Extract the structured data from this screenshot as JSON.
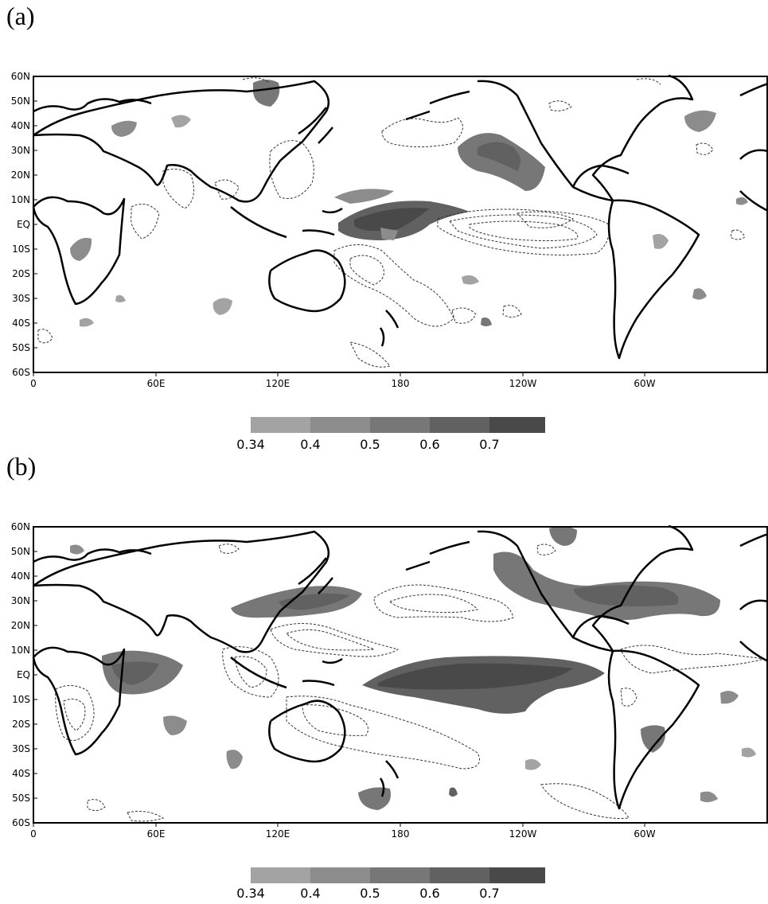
{
  "panels": [
    {
      "id": "a",
      "label": "(a)"
    },
    {
      "id": "b",
      "label": "(b)"
    }
  ],
  "axes": {
    "y_ticks": [
      "60N",
      "50N",
      "40N",
      "30N",
      "20N",
      "10N",
      "EQ",
      "10S",
      "20S",
      "30S",
      "40S",
      "50S",
      "60S"
    ],
    "x_ticks": [
      "0",
      "60E",
      "120E",
      "180",
      "120W",
      "60W"
    ]
  },
  "colorbar": {
    "levels": [
      "0.34",
      "0.4",
      "0.5",
      "0.6",
      "0.7"
    ],
    "colors": [
      "#a3a3a3",
      "#8c8c8c",
      "#777777",
      "#616161",
      "#494949"
    ]
  },
  "map_colors": {
    "land": "#000000",
    "negative_contour": "#333333"
  }
}
